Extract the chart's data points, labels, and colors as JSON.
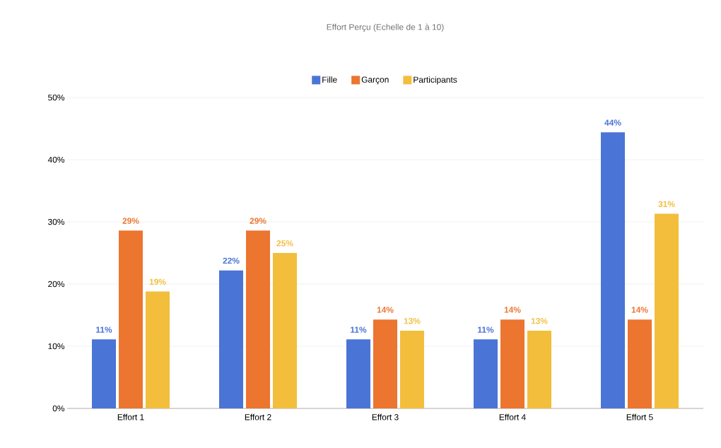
{
  "chart_data": {
    "type": "bar",
    "title": "Effort Perçu (Echelle de 1 à 10)",
    "categories": [
      "Effort 1",
      "Effort 2",
      "Effort 3",
      "Effort 4",
      "Effort 5"
    ],
    "series": [
      {
        "name": "Fille",
        "color": "#4a74d6",
        "values": [
          11.1,
          22.2,
          11.1,
          11.1,
          44.4
        ],
        "value_labels": [
          "11%",
          "22%",
          "11%",
          "11%",
          "44%"
        ]
      },
      {
        "name": "Garçon",
        "color": "#ec7530",
        "values": [
          28.6,
          28.6,
          14.3,
          14.3,
          14.3
        ],
        "value_labels": [
          "29%",
          "29%",
          "14%",
          "14%",
          "14%"
        ]
      },
      {
        "name": "Participants",
        "color": "#f2be3c",
        "values": [
          18.8,
          25,
          12.5,
          12.5,
          31.3
        ],
        "value_labels": [
          "19%",
          "25%",
          "13%",
          "13%",
          "31%"
        ]
      }
    ],
    "ylim": [
      0,
      50
    ],
    "yticks": [
      {
        "value": 0,
        "label": "0%"
      },
      {
        "value": 10,
        "label": "10%"
      },
      {
        "value": 20,
        "label": "20%"
      },
      {
        "value": 30,
        "label": "30%"
      },
      {
        "value": 40,
        "label": "40%"
      },
      {
        "value": 50,
        "label": "50%"
      }
    ],
    "grid": "y",
    "legend": "top"
  }
}
